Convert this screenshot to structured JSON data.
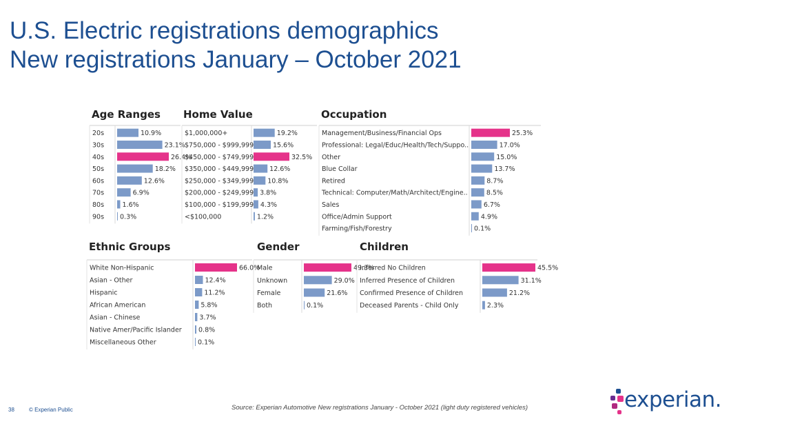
{
  "header": {
    "title_line1": "U.S. Electric registrations demographics",
    "title_line2": "New registrations January – October 2021"
  },
  "colors": {
    "title": "#1d4f91",
    "bar_default": "#7c9ac8",
    "bar_highlight": "#e5338a"
  },
  "chart_data": [
    {
      "id": "age",
      "type": "bar",
      "orientation": "horizontal",
      "title": "Age Ranges",
      "categories": [
        "20s",
        "30s",
        "40s",
        "50s",
        "60s",
        "70s",
        "80s",
        "90s"
      ],
      "values": [
        10.9,
        23.1,
        26.4,
        18.2,
        12.6,
        6.9,
        1.6,
        0.3
      ],
      "labels": [
        "10.9%",
        "23.1%",
        "26.4%",
        "18.2%",
        "12.6%",
        "6.9%",
        "1.6%",
        "0.3%"
      ],
      "highlight_index": 2
    },
    {
      "id": "home",
      "type": "bar",
      "orientation": "horizontal",
      "title": "Home Value",
      "categories": [
        "$1,000,000+",
        "$750,000 - $999,999",
        "$450,000 - $749,999",
        "$350,000 - $449,999",
        "$250,000 - $349,999",
        "$200,000 - $249,999",
        "$100,000 - $199,999",
        "<$100,000"
      ],
      "values": [
        19.2,
        15.6,
        32.5,
        12.6,
        10.8,
        3.8,
        4.3,
        1.2
      ],
      "labels": [
        "19.2%",
        "15.6%",
        "32.5%",
        "12.6%",
        "10.8%",
        "3.8%",
        "4.3%",
        "1.2%"
      ],
      "highlight_index": 2
    },
    {
      "id": "occupation",
      "type": "bar",
      "orientation": "horizontal",
      "title": "Occupation",
      "categories": [
        "Management/Business/Financial Ops",
        "Professional: Legal/Educ/Health/Tech/Suppo..",
        "Other",
        "Blue Collar",
        "Retired",
        "Technical: Computer/Math/Architect/Engine..",
        "Sales",
        "Office/Admin Support",
        "Farming/Fish/Forestry"
      ],
      "values": [
        25.3,
        17.0,
        15.0,
        13.7,
        8.7,
        8.5,
        6.7,
        4.9,
        0.1
      ],
      "labels": [
        "25.3%",
        "17.0%",
        "15.0%",
        "13.7%",
        "8.7%",
        "8.5%",
        "6.7%",
        "4.9%",
        "0.1%"
      ],
      "highlight_index": 0
    },
    {
      "id": "ethnic",
      "type": "bar",
      "orientation": "horizontal",
      "title": "Ethnic Groups",
      "categories": [
        "White Non-Hispanic",
        "Asian - Other",
        "Hispanic",
        "African American",
        "Asian - Chinese",
        "Native Amer/Pacific Islander",
        "Miscellaneous Other"
      ],
      "values": [
        66.0,
        12.4,
        11.2,
        5.8,
        3.7,
        0.8,
        0.1
      ],
      "labels": [
        "66.0%",
        "12.4%",
        "11.2%",
        "5.8%",
        "3.7%",
        "0.8%",
        "0.1%"
      ],
      "highlight_index": 0
    },
    {
      "id": "gender",
      "type": "bar",
      "orientation": "horizontal",
      "title": "Gender",
      "categories": [
        "Male",
        "Unknown",
        "Female",
        "Both"
      ],
      "values": [
        49.3,
        29.0,
        21.6,
        0.1
      ],
      "labels": [
        "49.3%",
        "29.0%",
        "21.6%",
        "0.1%"
      ],
      "highlight_index": 0
    },
    {
      "id": "children",
      "type": "bar",
      "orientation": "horizontal",
      "title": "Children",
      "categories": [
        "Inferred No Children",
        "Inferred Presence of Children",
        "Confirmed Presence of Children",
        "Deceased Parents - Child Only"
      ],
      "values": [
        45.5,
        31.1,
        21.2,
        2.3
      ],
      "labels": [
        "45.5%",
        "31.1%",
        "21.2%",
        "2.3%"
      ],
      "highlight_index": 0
    }
  ],
  "footer": {
    "page_number": "38",
    "classification": "© Experian Public",
    "source": "Source: Experian Automotive New registrations January - October 2021  (light duty registered vehicles)",
    "logo_text": "experian."
  }
}
